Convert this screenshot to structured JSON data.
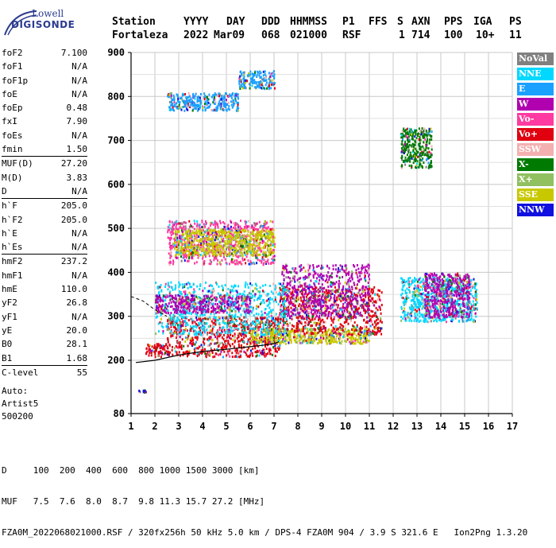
{
  "logo": {
    "line1": "Lowell",
    "line2": "DIGISONDE"
  },
  "header": {
    "labels": [
      "Station",
      "YYYY",
      "DAY",
      "DDD",
      "HHMMSS",
      "P1",
      "FFS",
      "S",
      "AXN",
      "PPS",
      "IGA",
      "PS"
    ],
    "values": [
      "Fortaleza",
      "2022",
      "Mar09",
      "068",
      "021000",
      "RSF",
      "1",
      "714",
      "100",
      "10+",
      "11"
    ]
  },
  "params": {
    "group1": [
      {
        "name": "foF2",
        "value": "7.100"
      },
      {
        "name": "foF1",
        "value": "N/A"
      },
      {
        "name": "foF1p",
        "value": "N/A"
      },
      {
        "name": "foE",
        "value": "N/A"
      },
      {
        "name": "foEp",
        "value": "0.48"
      },
      {
        "name": "fxI",
        "value": "7.90"
      },
      {
        "name": "foEs",
        "value": "N/A"
      },
      {
        "name": "fmin",
        "value": "1.50"
      }
    ],
    "group2": [
      {
        "name": "MUF(D)",
        "value": "27.20"
      },
      {
        "name": "M(D)",
        "value": "3.83"
      },
      {
        "name": "D",
        "value": "N/A"
      }
    ],
    "group3": [
      {
        "name": "h`F",
        "value": "205.0"
      },
      {
        "name": "h`F2",
        "value": "205.0"
      },
      {
        "name": "h`E",
        "value": "N/A"
      },
      {
        "name": "h`Es",
        "value": "N/A"
      }
    ],
    "group4": [
      {
        "name": "hmF2",
        "value": "237.2"
      },
      {
        "name": "hmF1",
        "value": "N/A"
      },
      {
        "name": "hmE",
        "value": "110.0"
      },
      {
        "name": "yF2",
        "value": "26.8"
      },
      {
        "name": "yF1",
        "value": "N/A"
      },
      {
        "name": "yE",
        "value": "20.0"
      },
      {
        "name": "B0",
        "value": "28.1"
      },
      {
        "name": "B1",
        "value": "1.68"
      }
    ],
    "group5": [
      {
        "name": "C-level",
        "value": "55"
      }
    ]
  },
  "auto": {
    "line1": "Auto:",
    "line2": "Artist5",
    "line3": "500200"
  },
  "legend": [
    {
      "label": "NoVal",
      "color": "#808080"
    },
    {
      "label": "NNE",
      "color": "#00d8ff"
    },
    {
      "label": "E",
      "color": "#1aa0ff"
    },
    {
      "label": "W",
      "color": "#b000b0"
    },
    {
      "label": "Vo-",
      "color": "#ff3aa0"
    },
    {
      "label": "Vo+",
      "color": "#e00010"
    },
    {
      "label": "SSW",
      "color": "#f4b0b0"
    },
    {
      "label": "X-",
      "color": "#007a00"
    },
    {
      "label": "X+",
      "color": "#90c060"
    },
    {
      "label": "SSE",
      "color": "#c8c800"
    },
    {
      "label": "NNW",
      "color": "#1010e0"
    }
  ],
  "footer": {
    "line1": "D     100  200  400  600  800 1000 1500 3000 [km]",
    "line2": "MUF   7.5  7.6  8.0  8.7  9.8 11.3 15.7 27.2 [MHz]",
    "line3": "FZA0M_2022068021000.RSF / 320fx256h 50 kHz 5.0 km / DPS-4 FZA0M 904 / 3.9 S 321.6 E   Ion2Png 1.3.20"
  },
  "chart_data": {
    "type": "scatter",
    "xlim": [
      1,
      17
    ],
    "ylim": [
      80,
      900
    ],
    "x_ticks": [
      1,
      2,
      3,
      4,
      5,
      6,
      7,
      8,
      9,
      10,
      11,
      12,
      13,
      14,
      15,
      16,
      17
    ],
    "y_ticks": [
      80,
      200,
      300,
      400,
      500,
      600,
      700,
      800,
      900
    ],
    "grid": true,
    "regions": [
      {
        "name": "Vo+",
        "x": [
          1.6,
          2.5
        ],
        "y": [
          210,
          240
        ],
        "color": "#e00010"
      },
      {
        "name": "Vo+",
        "x": [
          2.5,
          7.3
        ],
        "y": [
          210,
          300
        ],
        "color": "#e00010"
      },
      {
        "name": "SSE",
        "x": [
          6.0,
          11.0
        ],
        "y": [
          240,
          275
        ],
        "color": "#c8c800"
      },
      {
        "name": "Vo+",
        "x": [
          7.2,
          11.5
        ],
        "y": [
          260,
          370
        ],
        "color": "#e00010"
      },
      {
        "name": "W",
        "x": [
          7.3,
          11.0
        ],
        "y": [
          300,
          420
        ],
        "color": "#b000b0"
      },
      {
        "name": "NNE",
        "x": [
          2.0,
          7.5
        ],
        "y": [
          260,
          380
        ],
        "color": "#00d8ff"
      },
      {
        "name": "W",
        "x": [
          2.0,
          6.0
        ],
        "y": [
          310,
          350
        ],
        "color": "#b000b0"
      },
      {
        "name": "Vo-",
        "x": [
          2.5,
          7.0
        ],
        "y": [
          420,
          520
        ],
        "color": "#ff3aa0"
      },
      {
        "name": "SSE",
        "x": [
          2.8,
          7.0
        ],
        "y": [
          440,
          500
        ],
        "color": "#c8c800"
      },
      {
        "name": "E",
        "x": [
          2.5,
          5.5
        ],
        "y": [
          770,
          810
        ],
        "color": "#1aa0ff"
      },
      {
        "name": "E",
        "x": [
          5.5,
          7.0
        ],
        "y": [
          820,
          860
        ],
        "color": "#1aa0ff"
      },
      {
        "name": "NNE",
        "x": [
          12.3,
          15.5
        ],
        "y": [
          290,
          390
        ],
        "color": "#00d8ff"
      },
      {
        "name": "W",
        "x": [
          13.3,
          15.2
        ],
        "y": [
          300,
          400
        ],
        "color": "#b000b0"
      },
      {
        "name": "X-",
        "x": [
          12.3,
          13.6
        ],
        "y": [
          640,
          730
        ],
        "color": "#007a00"
      },
      {
        "name": "NNW",
        "x": [
          1.3,
          1.6
        ],
        "y": [
          130,
          135
        ],
        "color": "#1010e0"
      }
    ],
    "trace_x": [
      1.2,
      2,
      3,
      4,
      5,
      5.5,
      6,
      6.5,
      7,
      7.2
    ],
    "trace_y": [
      195,
      200,
      212,
      220,
      225,
      228,
      231,
      234,
      238,
      242
    ],
    "dashed_x": [
      1.0,
      1.5,
      2.0,
      2.5
    ],
    "dashed_y": [
      345,
      335,
      315,
      300
    ]
  }
}
